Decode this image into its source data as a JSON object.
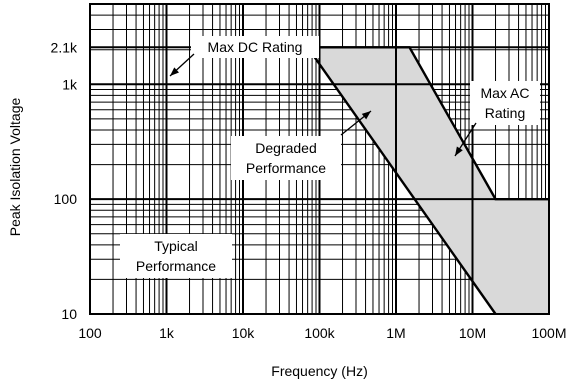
{
  "chart_data": {
    "type": "line",
    "xlabel": "Frequency (Hz)",
    "ylabel": "Peak Isolation Voltage",
    "x_scale": "log",
    "y_scale": "log",
    "xlim": [
      100,
      100000000
    ],
    "ylim": [
      10,
      5000
    ],
    "grid": true,
    "x_tick_values": [
      100,
      1000,
      10000,
      100000,
      1000000,
      10000000,
      100000000
    ],
    "x_tick_labels": [
      "100",
      "1k",
      "10k",
      "100k",
      "1M",
      "10M",
      "100M"
    ],
    "y_tick_values": [
      10,
      100,
      1000,
      2100
    ],
    "y_tick_labels": [
      "10",
      "100",
      "1k",
      "2.1k"
    ],
    "series": [
      {
        "name": "Max AC Rating",
        "x": [
          70000,
          1500000,
          20000000,
          100000000
        ],
        "y": [
          2100,
          2100,
          100,
          100
        ]
      },
      {
        "name": "Typical Performance",
        "x": [
          70000,
          20000000
        ],
        "y": [
          2100,
          10
        ]
      }
    ],
    "shaded_region": {
      "name": "Degraded Performance",
      "color": "#d9d9d9",
      "x": [
        70000,
        1500000,
        20000000,
        100000000,
        100000000,
        20000000
      ],
      "y": [
        2100,
        2100,
        100,
        100,
        10,
        10
      ]
    },
    "dc_rating": {
      "name": "Max DC Rating",
      "value": 2100
    },
    "annotations": [
      {
        "id": "max-dc",
        "lines": [
          "Max DC Rating"
        ]
      },
      {
        "id": "max-ac",
        "lines": [
          "Max AC",
          "Rating"
        ]
      },
      {
        "id": "degraded",
        "lines": [
          "Degraded",
          "Performance"
        ]
      },
      {
        "id": "typical",
        "lines": [
          "Typical",
          "Performance"
        ]
      }
    ]
  }
}
